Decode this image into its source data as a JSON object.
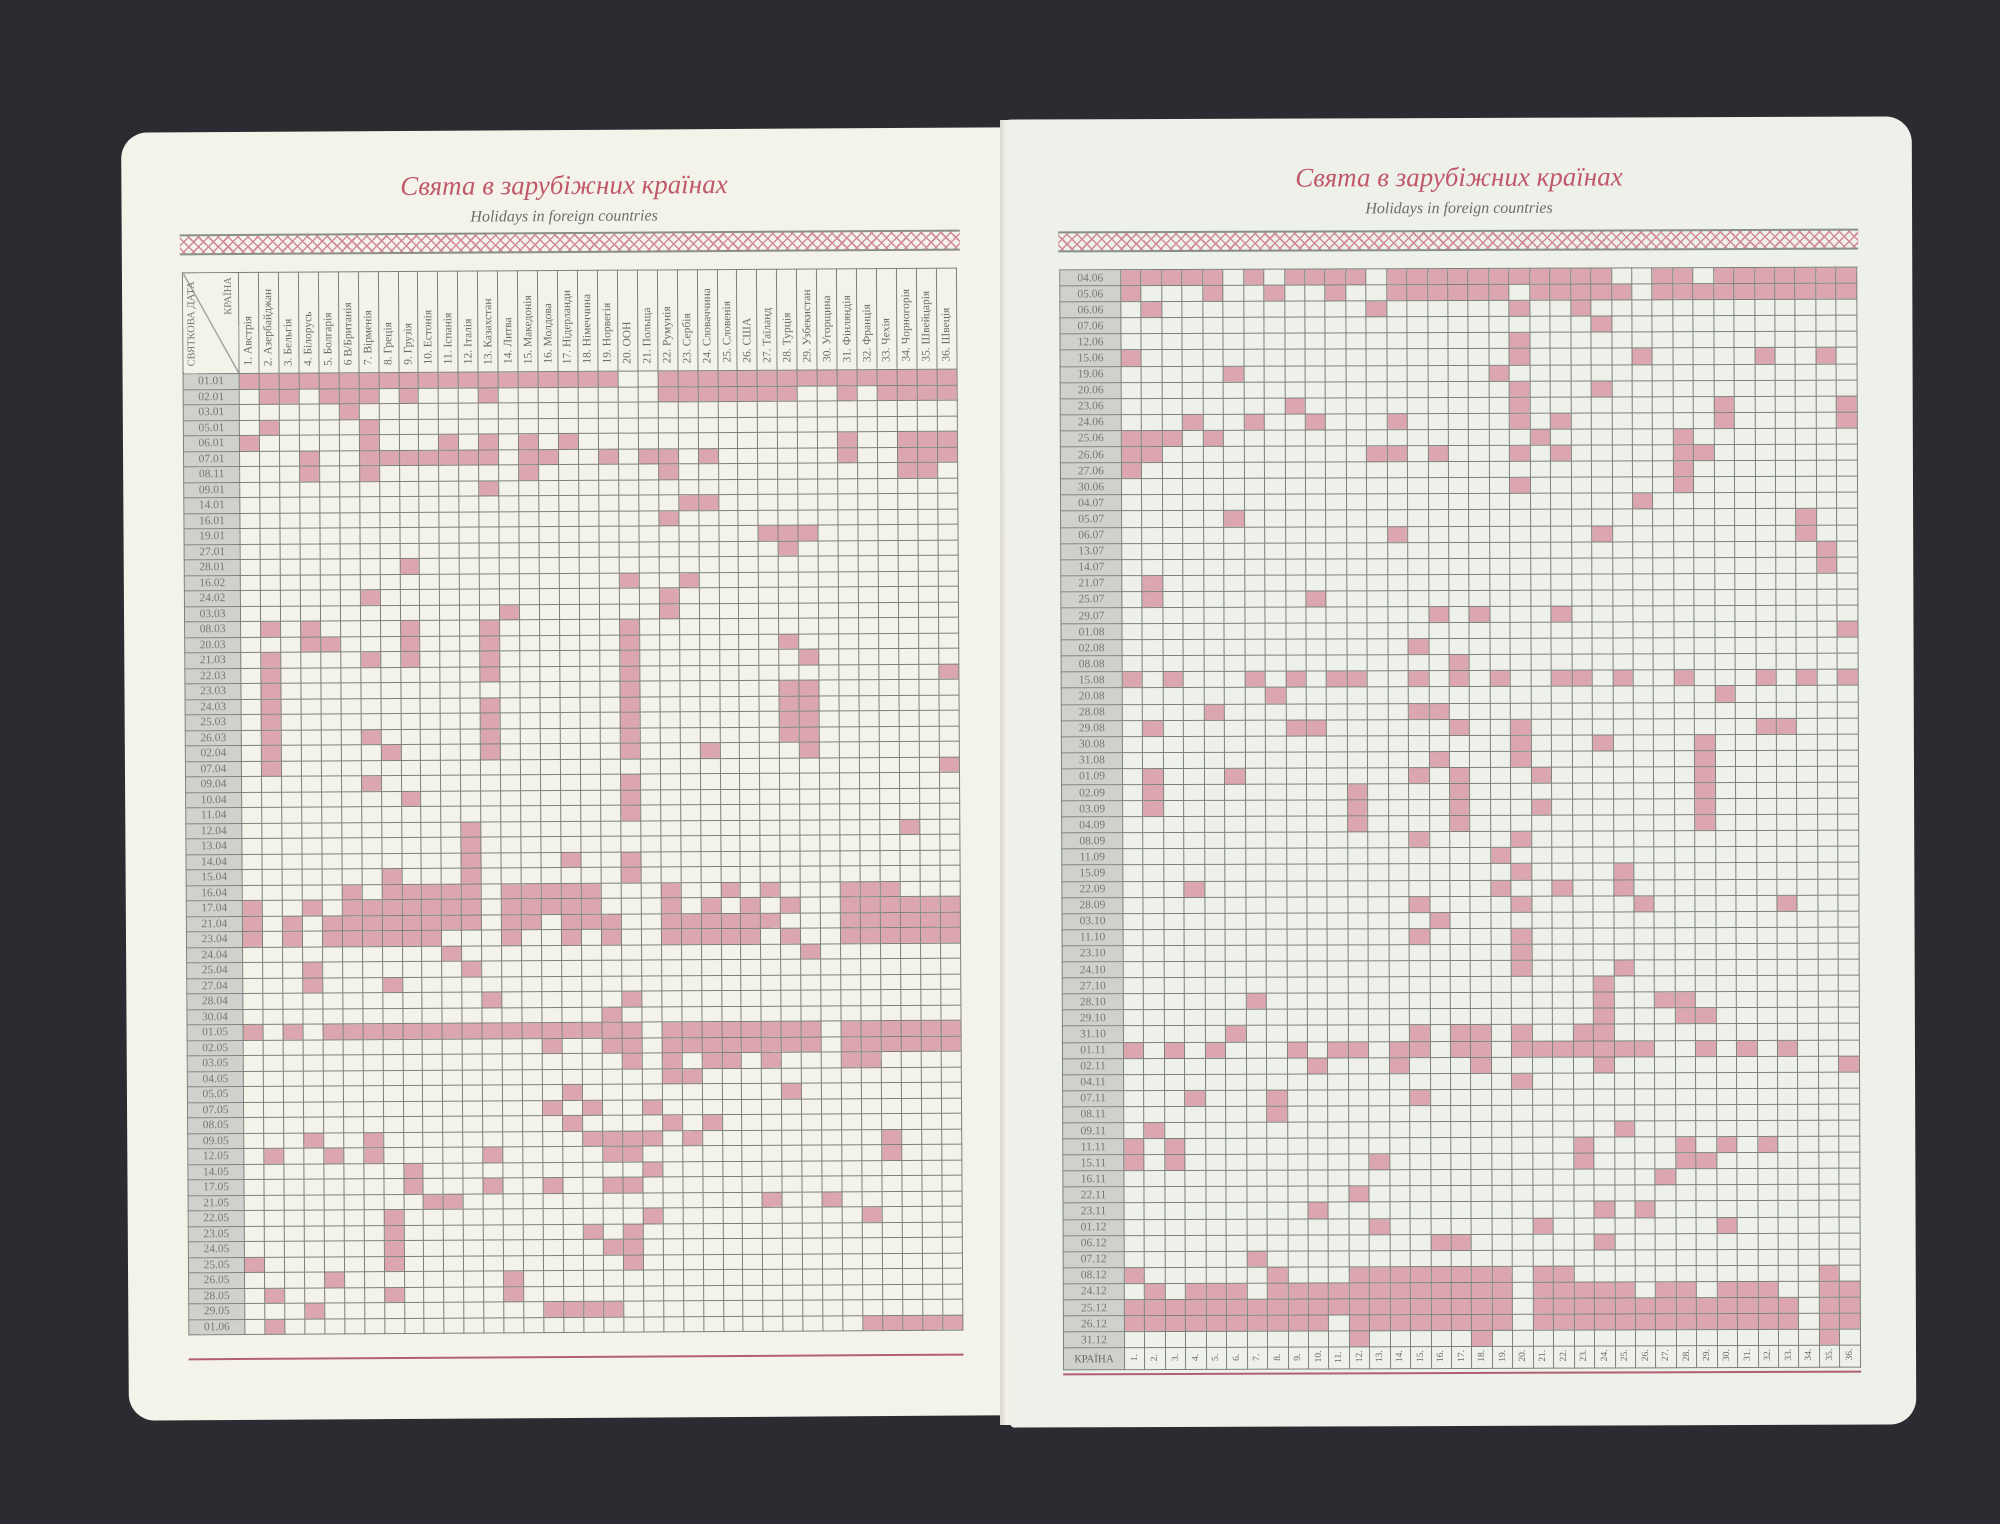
{
  "left_page": {
    "title": "Свята в зарубіжних країнах",
    "subtitle": "Holidays in foreign countries",
    "corner_date_label": "СВЯТКОВА ДАТА",
    "corner_country_label": "КРАЇНА",
    "countries": [
      "1. Австрія",
      "2. Азербайджан",
      "3. Бельгія",
      "4. Білорусь",
      "5. Болгарія",
      "6 В/Британія",
      "7. Вірменія",
      "8. Греція",
      "9. Грузія",
      "10. Естонія",
      "11. Іспанія",
      "12. Італія",
      "13. Казахстан",
      "14. Литва",
      "15. Македонія",
      "16. Молдова",
      "17. Нідерланди",
      "18. Німеччина",
      "19. Норвегія",
      "20. ООН",
      "21. Польща",
      "22. Румунія",
      "23. Сербія",
      "24. Словаччина",
      "25. Словенія",
      "26. США",
      "27. Таїланд",
      "28. Турція",
      "29. Узбекистан",
      "30. Угорщина",
      "31. Фінляндія",
      "32. Франція",
      "33. Чехія",
      "34. Чорногорія",
      "35. Швейцарія",
      "36. Швеція"
    ],
    "dates": [
      "01.01",
      "02.01",
      "03.01",
      "05.01",
      "06.01",
      "07.01",
      "08.11",
      "09.01",
      "14.01",
      "16.01",
      "19.01",
      "27.01",
      "28.01",
      "16.02",
      "24.02",
      "03.03",
      "08.03",
      "20.03",
      "21.03",
      "22.03",
      "23.03",
      "24.03",
      "25.03",
      "26.03",
      "02.04",
      "07.04",
      "09.04",
      "10.04",
      "11.04",
      "12.04",
      "13.04",
      "14.04",
      "15.04",
      "16.04",
      "17.04",
      "21.04",
      "23.04",
      "24.04",
      "25.04",
      "27.04",
      "28.04",
      "30.04",
      "01.05",
      "02.05",
      "03.05",
      "04.05",
      "05.05",
      "07.05",
      "08.05",
      "09.05",
      "12.05",
      "14.05",
      "17.05",
      "21.05",
      "22.05",
      "23.05",
      "24.05",
      "25.05",
      "26.05",
      "28.05",
      "29.05",
      "01.06"
    ],
    "holidays": {
      "01.01": [
        1,
        2,
        3,
        4,
        5,
        6,
        7,
        8,
        9,
        10,
        11,
        12,
        13,
        14,
        15,
        16,
        17,
        18,
        19,
        22,
        23,
        24,
        25,
        26,
        27,
        28,
        29,
        30,
        31,
        32,
        33,
        34,
        35,
        36
      ],
      "02.01": [
        2,
        3,
        5,
        6,
        7,
        9,
        13,
        22,
        23,
        24,
        25,
        26,
        27,
        28,
        31,
        33,
        34,
        35,
        36
      ],
      "03.01": [
        6
      ],
      "05.01": [
        2,
        7
      ],
      "06.01": [
        1,
        7,
        11,
        13,
        15,
        17,
        31,
        34,
        35,
        36
      ],
      "07.01": [
        4,
        7,
        8,
        9,
        10,
        11,
        12,
        13,
        15,
        16,
        19,
        21,
        22,
        24,
        31,
        34,
        35,
        36
      ],
      "08.11": [
        4,
        7,
        15,
        22,
        34,
        35
      ],
      "09.01": [
        13
      ],
      "14.01": [
        23,
        24
      ],
      "16.01": [
        22
      ],
      "19.01": [
        27,
        28,
        29
      ],
      "27.01": [
        28
      ],
      "28.01": [
        9
      ],
      "16.02": [
        20,
        23
      ],
      "24.02": [
        7,
        22
      ],
      "03.03": [
        14,
        22
      ],
      "08.03": [
        2,
        4,
        9,
        13,
        20
      ],
      "20.03": [
        4,
        5,
        9,
        13,
        20,
        28
      ],
      "21.03": [
        2,
        7,
        9,
        13,
        20,
        29
      ],
      "22.03": [
        2,
        13,
        20,
        36
      ],
      "23.03": [
        2,
        20,
        28,
        29
      ],
      "24.03": [
        2,
        13,
        20,
        28,
        29
      ],
      "25.03": [
        2,
        13,
        20,
        28,
        29
      ],
      "26.03": [
        2,
        7,
        13,
        20,
        28,
        29
      ],
      "02.04": [
        2,
        8,
        13,
        20,
        24,
        29
      ],
      "07.04": [
        2,
        36
      ],
      "09.04": [
        7,
        20
      ],
      "10.04": [
        9,
        20
      ],
      "11.04": [
        20
      ],
      "12.04": [
        12,
        34
      ],
      "13.04": [
        12
      ],
      "14.04": [
        12,
        17,
        20
      ],
      "15.04": [
        8,
        12,
        20
      ],
      "16.04": [
        6,
        8,
        9,
        10,
        11,
        12,
        14,
        15,
        16,
        17,
        18,
        22,
        25,
        27,
        31,
        32,
        33
      ],
      "17.04": [
        1,
        4,
        6,
        7,
        8,
        9,
        10,
        11,
        12,
        14,
        15,
        16,
        17,
        18,
        22,
        24,
        26,
        28,
        31,
        32,
        33,
        34,
        35,
        36
      ],
      "21.04": [
        1,
        3,
        5,
        6,
        7,
        8,
        9,
        10,
        11,
        12,
        14,
        15,
        17,
        18,
        19,
        22,
        23,
        24,
        25,
        26,
        27,
        31,
        32,
        33,
        34,
        35,
        36
      ],
      "23.04": [
        1,
        3,
        5,
        6,
        7,
        8,
        9,
        10,
        14,
        17,
        19,
        22,
        23,
        24,
        25,
        26,
        28,
        31,
        32,
        33,
        34,
        35,
        36
      ],
      "24.04": [
        11,
        29
      ],
      "25.04": [
        4,
        12
      ],
      "27.04": [
        4,
        8
      ],
      "28.04": [
        13,
        20
      ],
      "30.04": [
        19
      ],
      "01.05": [
        1,
        3,
        5,
        6,
        7,
        8,
        9,
        10,
        11,
        12,
        13,
        14,
        15,
        16,
        17,
        18,
        19,
        20,
        22,
        23,
        24,
        25,
        26,
        27,
        28,
        29,
        31,
        32,
        33,
        34,
        35,
        36
      ],
      "02.05": [
        16,
        19,
        20,
        22,
        23,
        24,
        25,
        26,
        27,
        28,
        29,
        31,
        32,
        33,
        34,
        35,
        36
      ],
      "03.05": [
        20,
        22,
        24,
        25,
        27,
        31,
        32
      ],
      "04.05": [
        22,
        23
      ],
      "05.05": [
        17,
        28
      ],
      "07.05": [
        16,
        18,
        21
      ],
      "08.05": [
        17,
        22,
        24
      ],
      "09.05": [
        4,
        7,
        18,
        19,
        20,
        21,
        23,
        33
      ],
      "12.05": [
        2,
        5,
        7,
        13,
        19,
        20,
        33
      ],
      "14.05": [
        9,
        21
      ],
      "17.05": [
        9,
        13,
        16,
        19,
        20
      ],
      "21.05": [
        10,
        11,
        27,
        30
      ],
      "22.05": [
        8,
        21,
        32
      ],
      "23.05": [
        8,
        18,
        20
      ],
      "24.05": [
        8,
        19,
        20
      ],
      "25.05": [
        1,
        8,
        20
      ],
      "26.05": [
        5,
        14
      ],
      "28.05": [
        2,
        8,
        14
      ],
      "29.05": [
        4,
        16,
        17,
        18,
        19
      ],
      "01.06": [
        2,
        32,
        33,
        34,
        35,
        36
      ]
    }
  },
  "right_page": {
    "title": "Свята в зарубіжних країнах",
    "subtitle": "Holidays in foreign countries",
    "footer_label": "КРАЇНА",
    "country_numbers": [
      "1.",
      "2.",
      "3.",
      "4.",
      "5.",
      "6.",
      "7.",
      "8.",
      "9.",
      "10.",
      "11.",
      "12.",
      "13.",
      "14.",
      "15.",
      "16.",
      "17.",
      "18.",
      "19.",
      "20.",
      "21.",
      "22.",
      "23.",
      "24.",
      "25.",
      "26.",
      "27.",
      "28.",
      "29.",
      "30.",
      "31.",
      "32.",
      "33.",
      "34.",
      "35.",
      "36."
    ],
    "dates": [
      "04.06",
      "05.06",
      "06.06",
      "07.06",
      "12.06",
      "15.06",
      "19.06",
      "20.06",
      "23.06",
      "24.06",
      "25.06",
      "26.06",
      "27.06",
      "30.06",
      "04.07",
      "05.07",
      "06.07",
      "13.07",
      "14.07",
      "21.07",
      "25.07",
      "29.07",
      "01.08",
      "02.08",
      "08.08",
      "15.08",
      "20.08",
      "28.08",
      "29.08",
      "30.08",
      "31.08",
      "01.09",
      "02.09",
      "03.09",
      "04.09",
      "08.09",
      "11.09",
      "15.09",
      "22.09",
      "28.09",
      "03.10",
      "11.10",
      "23.10",
      "24.10",
      "27.10",
      "28.10",
      "29.10",
      "31.10",
      "01.11",
      "02.11",
      "04.11",
      "07.11",
      "08.11",
      "09.11",
      "11.11",
      "15.11",
      "16.11",
      "22.11",
      "23.11",
      "01.12",
      "06.12",
      "07.12",
      "08.12",
      "24.12",
      "25.12",
      "26.12",
      "31.12"
    ],
    "holidays": {
      "04.06": [
        1,
        2,
        3,
        4,
        5,
        7,
        9,
        10,
        11,
        12,
        14,
        15,
        16,
        17,
        18,
        19,
        20,
        21,
        22,
        23,
        24,
        27,
        28,
        30,
        31,
        32,
        33,
        34,
        35,
        36
      ],
      "05.06": [
        1,
        5,
        8,
        11,
        14,
        15,
        16,
        17,
        18,
        19,
        21,
        22,
        23,
        24,
        25,
        27,
        28,
        29,
        30,
        31,
        32,
        33,
        34,
        35,
        36
      ],
      "06.06": [
        2,
        13,
        20,
        23
      ],
      "07.06": [
        24
      ],
      "12.06": [
        20
      ],
      "15.06": [
        1,
        20,
        26,
        32,
        35
      ],
      "19.06": [
        6,
        19
      ],
      "20.06": [
        20,
        24
      ],
      "23.06": [
        9,
        20,
        30,
        36
      ],
      "24.06": [
        4,
        7,
        10,
        14,
        20,
        22,
        30,
        36
      ],
      "25.06": [
        1,
        2,
        3,
        5,
        21,
        28
      ],
      "26.06": [
        1,
        2,
        13,
        14,
        16,
        20,
        22,
        28,
        29
      ],
      "27.06": [
        1,
        28
      ],
      "30.06": [
        20,
        28
      ],
      "04.07": [
        26
      ],
      "05.07": [
        6,
        34
      ],
      "06.07": [
        14,
        24,
        34
      ],
      "13.07": [
        35
      ],
      "14.07": [
        35
      ],
      "21.07": [
        2
      ],
      "25.07": [
        2,
        10
      ],
      "29.07": [
        16,
        18,
        22
      ],
      "01.08": [
        36
      ],
      "02.08": [
        15
      ],
      "08.08": [
        17
      ],
      "15.08": [
        1,
        3,
        7,
        9,
        11,
        12,
        15,
        17,
        19,
        22,
        23,
        25,
        28,
        32,
        34,
        36
      ],
      "20.08": [
        8,
        30
      ],
      "28.08": [
        5,
        15,
        16
      ],
      "29.08": [
        2,
        9,
        10,
        17,
        20,
        32,
        33
      ],
      "30.08": [
        20,
        24,
        29
      ],
      "31.08": [
        16,
        20,
        29
      ],
      "01.09": [
        2,
        6,
        15,
        17,
        21,
        29
      ],
      "02.09": [
        2,
        12,
        17,
        29
      ],
      "03.09": [
        2,
        12,
        17,
        21,
        29
      ],
      "04.09": [
        12,
        17,
        29
      ],
      "08.09": [
        15,
        20
      ],
      "11.09": [
        19
      ],
      "15.09": [
        20,
        25
      ],
      "22.09": [
        4,
        19,
        22,
        25
      ],
      "28.09": [
        15,
        20,
        26,
        33
      ],
      "03.10": [
        16
      ],
      "11.10": [
        15,
        20
      ],
      "23.10": [
        20
      ],
      "24.10": [
        20,
        25
      ],
      "27.10": [
        24
      ],
      "28.10": [
        7,
        24,
        27,
        28
      ],
      "29.10": [
        24,
        28,
        29
      ],
      "31.10": [
        6,
        15,
        17,
        18,
        20,
        23,
        24
      ],
      "01.11": [
        1,
        3,
        5,
        9,
        11,
        12,
        14,
        15,
        17,
        18,
        20,
        21,
        22,
        23,
        24,
        25,
        26,
        29,
        31,
        33
      ],
      "02.11": [
        10,
        14,
        18,
        24,
        36
      ],
      "04.11": [
        20
      ],
      "07.11": [
        4,
        8,
        15
      ],
      "08.11": [
        8
      ],
      "09.11": [
        2,
        25
      ],
      "11.11": [
        1,
        3,
        23,
        28,
        30,
        32
      ],
      "15.11": [
        1,
        3,
        13,
        23,
        28,
        29
      ],
      "16.11": [
        27
      ],
      "22.11": [
        12
      ],
      "23.11": [
        10,
        24,
        26
      ],
      "01.12": [
        13,
        21,
        30
      ],
      "06.12": [
        16,
        17,
        24
      ],
      "07.12": [
        7
      ],
      "08.12": [
        1,
        8,
        12,
        13,
        14,
        15,
        16,
        17,
        18,
        19,
        21,
        22,
        35
      ],
      "24.12": [
        2,
        4,
        5,
        6,
        8,
        9,
        10,
        11,
        12,
        13,
        14,
        15,
        16,
        17,
        18,
        19,
        21,
        22,
        23,
        24,
        25,
        27,
        28,
        30,
        31,
        32,
        35,
        36
      ],
      "25.12": [
        1,
        2,
        3,
        4,
        5,
        6,
        7,
        8,
        9,
        10,
        11,
        12,
        13,
        14,
        15,
        16,
        17,
        18,
        19,
        21,
        22,
        23,
        24,
        25,
        26,
        27,
        28,
        29,
        30,
        31,
        32,
        33,
        35,
        36
      ],
      "26.12": [
        1,
        2,
        3,
        4,
        5,
        6,
        7,
        8,
        9,
        10,
        12,
        13,
        14,
        15,
        16,
        17,
        18,
        19,
        21,
        22,
        23,
        24,
        25,
        26,
        27,
        28,
        29,
        30,
        31,
        32,
        33,
        35,
        36
      ],
      "31.12": [
        12,
        18,
        35
      ]
    }
  },
  "colors": {
    "holiday_cell": "#dca6ae",
    "date_cell": "#cfd1cd",
    "title": "#c0586a",
    "background": "#2b2b31"
  }
}
